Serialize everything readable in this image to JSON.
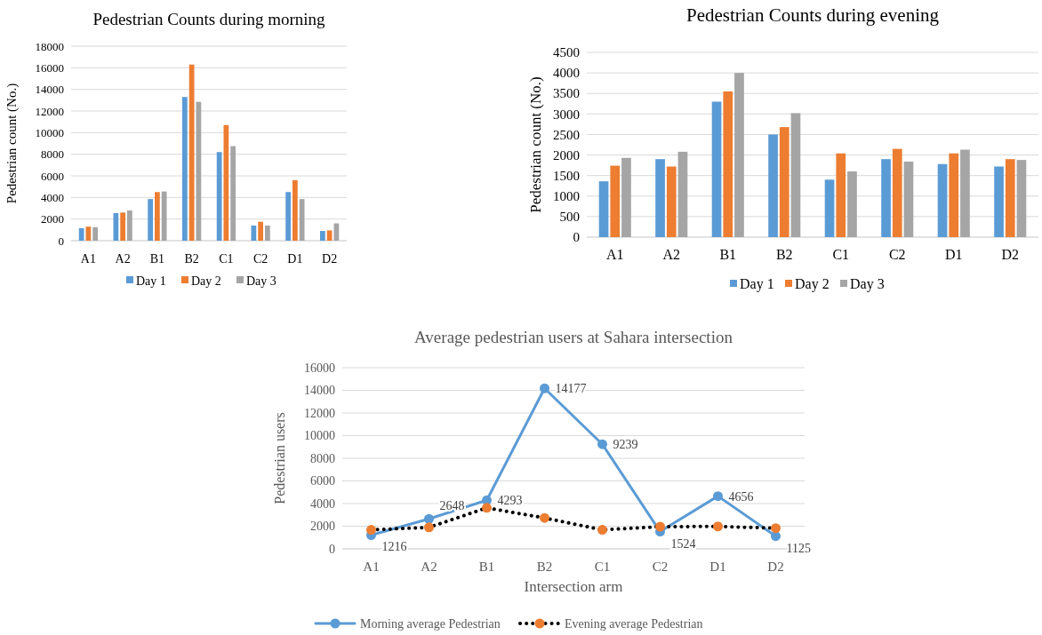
{
  "chart_data": [
    {
      "type": "bar",
      "title": "Pedestrian Counts during morning",
      "ylabel": "Pedestrian count (No.)",
      "categories": [
        "A1",
        "A2",
        "B1",
        "B2",
        "C1",
        "C2",
        "D1",
        "D2"
      ],
      "series": [
        {
          "name": "Day 1",
          "color": "#5b9bd5",
          "values": [
            1150,
            2550,
            3850,
            13300,
            8200,
            1400,
            4500,
            900
          ]
        },
        {
          "name": "Day 2",
          "color": "#ed7d31",
          "values": [
            1300,
            2600,
            4500,
            16300,
            10700,
            1750,
            5600,
            950
          ]
        },
        {
          "name": "Day 3",
          "color": "#a5a5a5",
          "values": [
            1250,
            2800,
            4550,
            12850,
            8750,
            1400,
            3850,
            1600
          ]
        }
      ],
      "ylim": [
        0,
        18000
      ],
      "yticks": [
        0,
        2000,
        4000,
        6000,
        8000,
        10000,
        12000,
        14000,
        16000,
        18000
      ],
      "grid": "y",
      "legend": "bottom"
    },
    {
      "type": "bar",
      "title": "Pedestrian Counts during evening",
      "ylabel": "Pedestrian count (No.)",
      "categories": [
        "A1",
        "A2",
        "B1",
        "B2",
        "C1",
        "C2",
        "D1",
        "D2"
      ],
      "series": [
        {
          "name": "Day 1",
          "color": "#5b9bd5",
          "values": [
            1360,
            1900,
            3300,
            2500,
            1400,
            1900,
            1780,
            1720
          ]
        },
        {
          "name": "Day 2",
          "color": "#ed7d31",
          "values": [
            1740,
            1720,
            3550,
            2680,
            2040,
            2150,
            2040,
            1900
          ]
        },
        {
          "name": "Day 3",
          "color": "#a5a5a5",
          "values": [
            1930,
            2080,
            4000,
            3020,
            1600,
            1840,
            2130,
            1880
          ]
        }
      ],
      "ylim": [
        0,
        4500
      ],
      "yticks": [
        0,
        500,
        1000,
        1500,
        2000,
        2500,
        3000,
        3500,
        4000,
        4500
      ],
      "grid": "y",
      "legend": "bottom"
    },
    {
      "type": "line",
      "title": "Average pedestrian users at Sahara intersection",
      "xlabel": "Intersection arm",
      "ylabel": "Pedestrian users",
      "categories": [
        "A1",
        "A2",
        "B1",
        "B2",
        "C1",
        "C2",
        "D1",
        "D2"
      ],
      "series": [
        {
          "name": "Morning average Pedestrian",
          "color": "#5b9bd5",
          "line_style": "solid",
          "values": [
            1216,
            2648,
            4293,
            14177,
            9239,
            1524,
            4656,
            1125
          ],
          "value_labels": [
            "1216",
            "2648",
            "4293",
            "14177",
            "9239",
            "1524",
            "4656",
            "1125"
          ]
        },
        {
          "name": "Evening average Pedestrian",
          "color": "#ed7d31",
          "line_style": "dotted",
          "values": [
            1680,
            1900,
            3620,
            2730,
            1680,
            1960,
            1980,
            1830
          ]
        }
      ],
      "ylim": [
        0,
        16000
      ],
      "yticks": [
        0,
        2000,
        4000,
        6000,
        8000,
        10000,
        12000,
        14000,
        16000
      ],
      "grid": "y",
      "legend": "bottom",
      "marker": "circle"
    }
  ]
}
